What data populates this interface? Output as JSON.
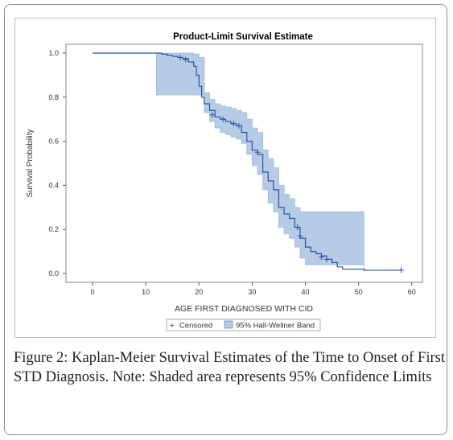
{
  "figure": {
    "caption_label": "Figure 2:",
    "caption_text": " Kaplan-Meier Survival Estimates of the Time to Onset of First STD Diagnosis. Note: Shaded area represents 95% Confidence Limits"
  },
  "colors": {
    "line": "#2c4f9e",
    "band": "#b5cbe6",
    "band_edge": "#9fb9dc",
    "axis": "#555555"
  },
  "chart_data": {
    "type": "line",
    "title": "Product-Limit Survival Estimate",
    "xlabel": "AGE FIRST DIAGNOSED WITH CID",
    "ylabel": "Survival Probability",
    "xlim": [
      -5,
      62
    ],
    "ylim": [
      -0.04,
      1.04
    ],
    "xticks": [
      0,
      10,
      20,
      30,
      40,
      50,
      60
    ],
    "xtick_labels": [
      "0",
      "10",
      "20",
      "30",
      "40",
      "50",
      "60"
    ],
    "yticks": [
      0,
      0.2,
      0.4,
      0.6,
      0.8,
      1.0
    ],
    "ytick_labels": [
      "0.0",
      "0.2",
      "0.4",
      "0.6",
      "0.8",
      "1.0"
    ],
    "legend": {
      "position": "bottom",
      "entries": [
        {
          "label": "Censored",
          "marker": "+"
        },
        {
          "label": "95% Hall-Wellner Band",
          "marker": "box"
        }
      ]
    },
    "series": [
      {
        "name": "Survival",
        "kind": "step",
        "x": [
          0,
          12,
          13,
          14,
          15,
          16,
          17,
          18,
          19,
          19.5,
          20,
          20.5,
          21,
          22,
          23,
          24,
          25,
          26,
          27,
          28,
          29,
          30,
          31,
          32,
          33,
          34,
          35,
          36,
          37,
          38,
          39,
          40,
          41,
          42,
          43,
          44,
          45,
          46,
          47,
          51,
          58
        ],
        "y": [
          1.0,
          1.0,
          0.995,
          0.99,
          0.985,
          0.98,
          0.975,
          0.96,
          0.94,
          0.9,
          0.85,
          0.8,
          0.77,
          0.74,
          0.71,
          0.7,
          0.69,
          0.68,
          0.67,
          0.64,
          0.6,
          0.56,
          0.54,
          0.46,
          0.42,
          0.38,
          0.3,
          0.27,
          0.25,
          0.21,
          0.16,
          0.12,
          0.1,
          0.09,
          0.08,
          0.065,
          0.05,
          0.03,
          0.02,
          0.015,
          0.015
        ]
      }
    ],
    "band": {
      "name": "95% Hall-Wellner Band",
      "x": [
        12,
        14,
        16,
        18,
        19,
        20,
        21,
        22,
        23,
        24,
        25,
        26,
        27,
        28,
        29,
        30,
        31,
        32,
        33,
        34,
        35,
        36,
        37,
        38,
        39,
        40,
        51
      ],
      "upper": [
        1.0,
        1.0,
        1.0,
        1.0,
        0.995,
        0.98,
        0.82,
        0.79,
        0.77,
        0.76,
        0.755,
        0.75,
        0.74,
        0.73,
        0.7,
        0.66,
        0.64,
        0.56,
        0.52,
        0.48,
        0.4,
        0.36,
        0.34,
        0.3,
        0.28,
        0.28,
        0.28
      ],
      "lower": [
        0.81,
        0.81,
        0.81,
        0.81,
        0.81,
        0.81,
        0.73,
        0.69,
        0.66,
        0.64,
        0.63,
        0.62,
        0.61,
        0.59,
        0.54,
        0.49,
        0.45,
        0.38,
        0.32,
        0.28,
        0.21,
        0.18,
        0.16,
        0.12,
        0.07,
        0.04,
        0.01
      ]
    },
    "censored": [
      {
        "x": 16.5,
        "y": 0.98
      },
      {
        "x": 17.5,
        "y": 0.97
      },
      {
        "x": 22.5,
        "y": 0.72
      },
      {
        "x": 24.5,
        "y": 0.7
      },
      {
        "x": 26.5,
        "y": 0.68
      },
      {
        "x": 27.5,
        "y": 0.67
      },
      {
        "x": 31,
        "y": 0.55
      },
      {
        "x": 38.5,
        "y": 0.21
      },
      {
        "x": 39,
        "y": 0.17
      },
      {
        "x": 43,
        "y": 0.075
      },
      {
        "x": 44,
        "y": 0.065
      },
      {
        "x": 58,
        "y": 0.015
      }
    ]
  }
}
